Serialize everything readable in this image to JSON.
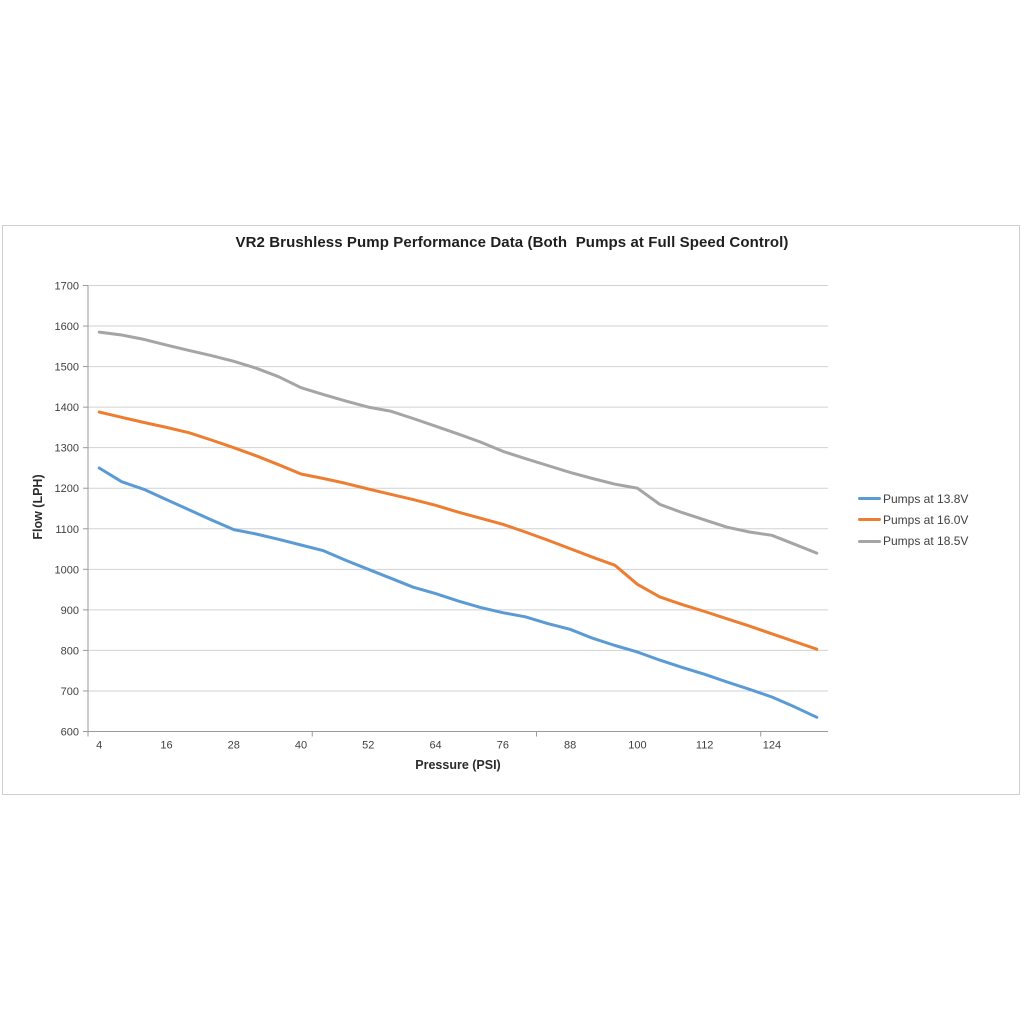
{
  "chart_data": {
    "type": "line",
    "title": "VR2 Brushless Pump Performance Data (Both  Pumps at Full Speed Control)",
    "xlabel": "Pressure (PSI)",
    "ylabel": "Flow (LPH)",
    "x": [
      4,
      8,
      12,
      16,
      20,
      24,
      28,
      32,
      36,
      40,
      44,
      48,
      52,
      56,
      60,
      64,
      68,
      72,
      76,
      80,
      84,
      88,
      92,
      96,
      100,
      104,
      108,
      112,
      116,
      120,
      124,
      128,
      132
    ],
    "x_tick_labels": [
      "4",
      "16",
      "28",
      "40",
      "52",
      "64",
      "76",
      "88",
      "100",
      "112",
      "124"
    ],
    "ylim": [
      600,
      1700
    ],
    "y_tick_step": 100,
    "y_tick_labels": [
      "600",
      "700",
      "800",
      "900",
      "1000",
      "1100",
      "1200",
      "1300",
      "1400",
      "1500",
      "1600",
      "1700"
    ],
    "grid": "horizontal",
    "legend_position": "right-middle",
    "series": [
      {
        "name": "Pumps at 13.8V",
        "color": "#5B9BD5",
        "values": [
          1250,
          1216,
          1197,
          1172,
          1147,
          1122,
          1098,
          1087,
          1074,
          1060,
          1046,
          1022,
          1000,
          978,
          956,
          940,
          922,
          906,
          893,
          883,
          866,
          852,
          830,
          812,
          796,
          776,
          758,
          741,
          722,
          704,
          685,
          661,
          635
        ]
      },
      {
        "name": "Pumps at 16.0V",
        "color": "#ED7D31",
        "values": [
          1388,
          1375,
          1362,
          1350,
          1337,
          1319,
          1300,
          1280,
          1258,
          1235,
          1224,
          1212,
          1198,
          1185,
          1172,
          1158,
          1141,
          1126,
          1111,
          1092,
          1072,
          1051,
          1030,
          1010,
          963,
          932,
          913,
          896,
          878,
          860,
          841,
          822,
          803
        ]
      },
      {
        "name": "Pumps at 18.5V",
        "color": "#A5A5A5",
        "values": [
          1585,
          1578,
          1567,
          1553,
          1540,
          1527,
          1513,
          1496,
          1475,
          1448,
          1431,
          1415,
          1400,
          1390,
          1372,
          1353,
          1334,
          1314,
          1291,
          1273,
          1256,
          1239,
          1224,
          1210,
          1200,
          1160,
          1140,
          1122,
          1104,
          1092,
          1084,
          1062,
          1040
        ]
      }
    ],
    "colors": {
      "frame_border": "#cfcfcf",
      "gridline": "#d2d2d2",
      "axis_line": "#9a9a9a",
      "tick_mark": "#9a9a9a",
      "tick_label": "#3f3f3f",
      "title_text": "#1f1f1f"
    }
  }
}
